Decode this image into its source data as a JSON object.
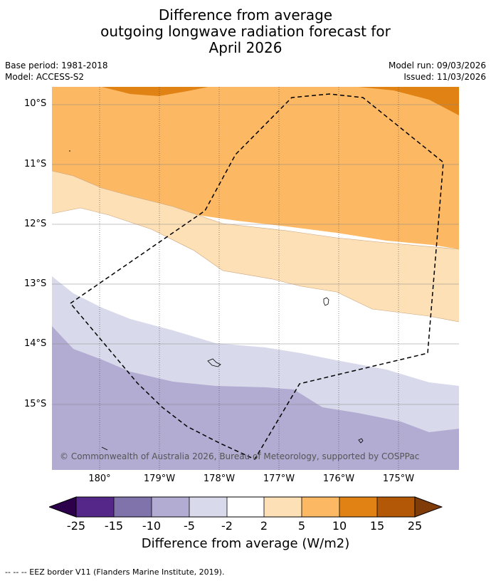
{
  "title": {
    "line1": "Difference from average",
    "line2": "outgoing longwave radiation forecast for",
    "line3": "April 2026"
  },
  "meta": {
    "base_period": "Base period: 1981-2018",
    "model": "Model: ACCESS-S2",
    "model_run": "Model run: 09/03/2026",
    "issued": "Issued: 11/03/2026"
  },
  "map": {
    "lat_labels": [
      "10°S",
      "11°S",
      "12°S",
      "13°S",
      "14°S",
      "15°S"
    ],
    "lon_labels": [
      "180°",
      "179°W",
      "178°W",
      "177°W",
      "176°W",
      "175°W"
    ],
    "copyright": "© Commonwealth of Australia 2026, Bureau of Meteorology, supported by COSPPac",
    "colors": {
      "brown_dark": "#b35806",
      "orange_dark": "#e08214",
      "orange": "#fdb863",
      "peach": "#fee0b6",
      "white": "#ffffff",
      "lavender_light": "#d8daeb",
      "lavender": "#b2abd2",
      "purple_mid": "#8073ac",
      "purple": "#542788",
      "purple_dark": "#2d004b",
      "brown_end": "#7f3b08"
    }
  },
  "colorbar": {
    "ticks": [
      "-25",
      "-15",
      "-10",
      "-5",
      "-2",
      "2",
      "5",
      "10",
      "15",
      "25"
    ],
    "title": "Difference from average (W/m2)"
  },
  "footer": "--  --  -- EEZ border V11 (Flanders Marine Institute, 2019)."
}
